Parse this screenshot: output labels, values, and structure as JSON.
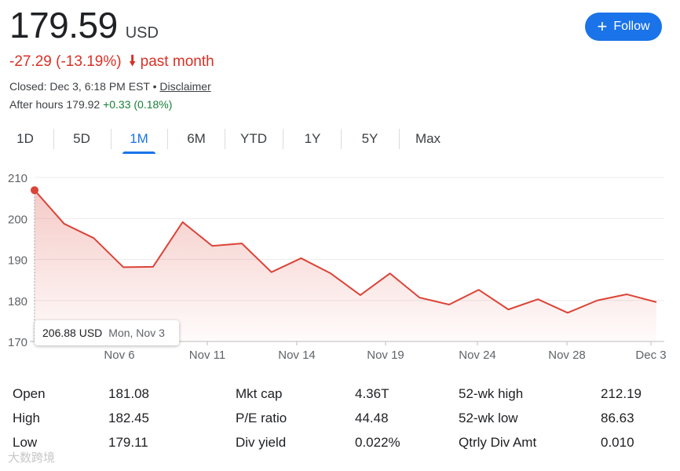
{
  "header": {
    "price": "179.59",
    "currency": "USD",
    "follow_label": "Follow",
    "change": "-27.29 (-13.19%)",
    "change_period": "past month",
    "closed_text": "Closed: Dec 3, 6:18 PM EST",
    "disclaimer": "Disclaimer",
    "after_hours_label": "After hours 179.92",
    "after_hours_change": "+0.33 (0.18%)"
  },
  "tabs": [
    "1D",
    "5D",
    "1M",
    "6M",
    "YTD",
    "1Y",
    "5Y",
    "Max"
  ],
  "active_tab": "1M",
  "colors": {
    "accent": "#1a73e8",
    "negative": "#d93025",
    "positive": "#188038",
    "line": "#db4437"
  },
  "tooltip": {
    "value": "206.88 USD",
    "date": "Mon, Nov 3"
  },
  "chart_data": {
    "type": "area",
    "y_ticks": [
      "210",
      "200",
      "190",
      "180",
      "170"
    ],
    "x_ticks": [
      "Nov 6",
      "Nov 11",
      "Nov 14",
      "Nov 19",
      "Nov 24",
      "Nov 28",
      "Dec 3"
    ],
    "ylim": [
      170,
      210
    ],
    "grid": true,
    "values": [
      206.88,
      198.7,
      195.2,
      188.1,
      188.2,
      199.1,
      193.3,
      193.9,
      186.9,
      190.3,
      186.6,
      181.3,
      186.6,
      180.7,
      179.0,
      182.6,
      177.8,
      180.3,
      177.0,
      180.0,
      181.5,
      179.59
    ]
  },
  "stats": [
    {
      "label": "Open",
      "value": "181.08"
    },
    {
      "label": "High",
      "value": "182.45"
    },
    {
      "label": "Low",
      "value": "179.11"
    },
    {
      "label": "Mkt cap",
      "value": "4.36T"
    },
    {
      "label": "P/E ratio",
      "value": "44.48"
    },
    {
      "label": "Div yield",
      "value": "0.022%"
    },
    {
      "label": "52-wk high",
      "value": "212.19"
    },
    {
      "label": "52-wk low",
      "value": "86.63"
    },
    {
      "label": "Qtrly Div Amt",
      "value": "0.010"
    }
  ],
  "watermark": "大数跨境"
}
